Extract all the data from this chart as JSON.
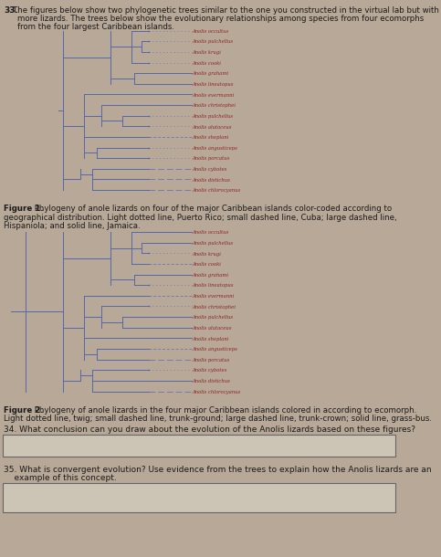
{
  "bg_outer": "#b8a898",
  "bg_page": "#e8e2d8",
  "text_color": "#1a1a1a",
  "tree_color": "#5566aa",
  "label_color": "#8b2020",
  "title": "33. The figures below show two phylogenetic trees similar to the one you constructed in the virtual lab but with\n     more lizards. The trees below show the evolutionary relationships among species from four ecomorphs\n     from the four largest Caribbean islands.",
  "fig1_bold": "Figure 1.",
  "fig1_rest": " Phylogeny of anole lizards on four of the major Caribbean islands color-coded according to",
  "fig1_line2": "geographical distribution. Light dotted line, Puerto Rico; small dashed line, Cuba; large dashed line,",
  "fig1_line3": "Hispaniola; and solid line, Jamaica.",
  "fig2_bold": "Figure 2.",
  "fig2_rest": " Phylogeny of anole lizards in the four major Caribbean islands colored in according to ecomorph.",
  "fig2_line2": "Light dotted line, twig; small dashed line, trunk-ground; large dashed line, trunk-crown; solid line, grass-bus.",
  "q34": "34. What conclusion can you draw about the evolution of the Anolis lizards based on these figures?",
  "q35_line1": "35. What is convergent evolution? Use evidence from the trees to explain how the Anolis lizards are an",
  "q35_line2": "    example of this concept.",
  "c_dotlight": "#7777bb",
  "c_dashsmall": "#7777bb",
  "c_dashlarge": "#7777bb",
  "c_solid": "#5566aa",
  "c_trunk": "#5566aa"
}
